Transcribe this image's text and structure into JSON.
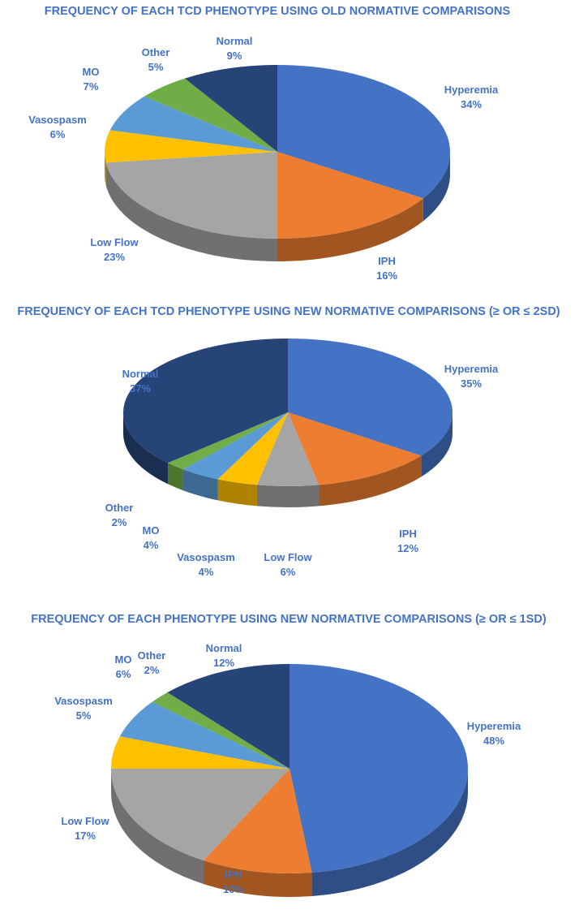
{
  "colors": {
    "Hyperemia": "#4472C4",
    "IPH": "#ED7D31",
    "Low Flow": "#A5A5A5",
    "Vasospasm": "#FFC000",
    "MO": "#5B9BD5",
    "Other": "#70AD47",
    "Normal": "#264478",
    "title": "#4472C4"
  },
  "chart_data": [
    {
      "type": "pie",
      "title": "FREQUENCY OF EACH TCD PHENOTYPE USING OLD NORMATIVE COMPARISONS",
      "categories": [
        "Hyperemia",
        "IPH",
        "Low Flow",
        "Vasospasm",
        "MO",
        "Other",
        "Normal"
      ],
      "values": [
        34,
        16,
        23,
        6,
        7,
        5,
        9
      ],
      "labels": [
        "34%",
        "16%",
        "23%",
        "6%",
        "7%",
        "5%",
        "9%"
      ],
      "three_d": true
    },
    {
      "type": "pie",
      "title": "FREQUENCY OF EACH TCD PHENOTYPE USING NEW NORMATIVE COMPARISONS (≥ OR ≤ 2SD)",
      "categories": [
        "Hyperemia",
        "IPH",
        "Low Flow",
        "Vasospasm",
        "MO",
        "Other",
        "Normal"
      ],
      "values": [
        35,
        12,
        6,
        4,
        4,
        2,
        37
      ],
      "labels": [
        "35%",
        "12%",
        "6%",
        "4%",
        "4%",
        "2%",
        "37%"
      ],
      "three_d": true
    },
    {
      "type": "pie",
      "title": "FREQUENCY OF EACH PHENOTYPE USING NEW NORMATIVE COMPARISONS (≥ OR ≤ 1SD)",
      "categories": [
        "Hyperemia",
        "IPH",
        "Low Flow",
        "Vasospasm",
        "MO",
        "Other",
        "Normal"
      ],
      "values": [
        48,
        10,
        17,
        5,
        6,
        2,
        12
      ],
      "labels": [
        "48%",
        "10%",
        "17%",
        "5%",
        "6%",
        "2%",
        "12%"
      ],
      "three_d": true
    }
  ]
}
